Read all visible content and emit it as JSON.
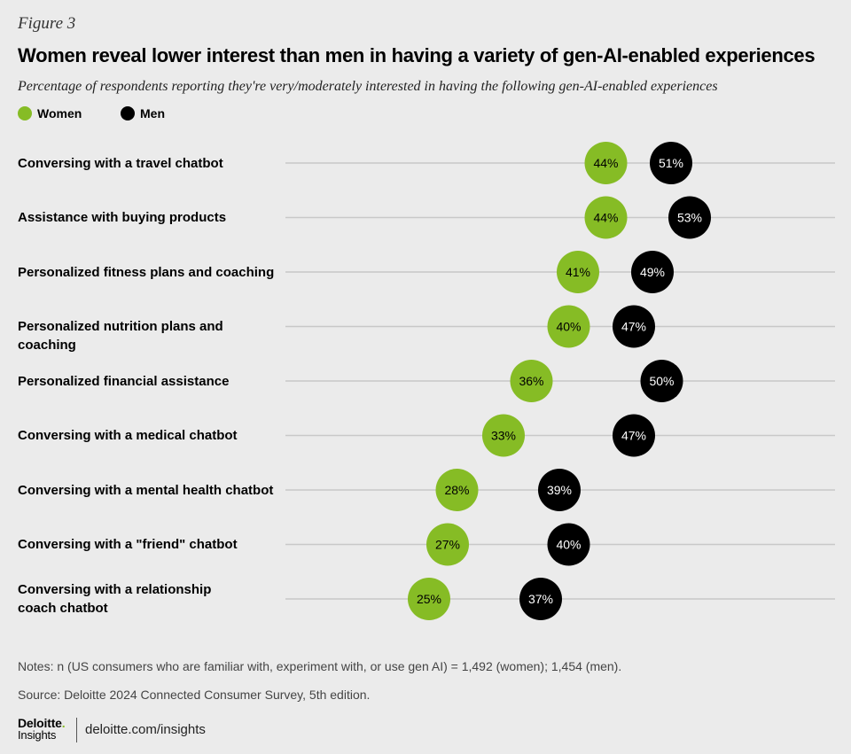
{
  "figure_label": "Figure 3",
  "title": "Women reveal lower interest than men in having a variety of gen-AI-enabled experiences",
  "subtitle": "Percentage of respondents reporting they're very/moderately interested in having the following gen-AI-enabled experiences",
  "legend": [
    {
      "label": "Women",
      "color": "#86bc25"
    },
    {
      "label": "Men",
      "color": "#000000"
    }
  ],
  "chart_data": {
    "type": "scatter",
    "subtype": "dot-plot",
    "title": "Women reveal lower interest than men in having a variety of gen-AI-enabled experiences",
    "subtitle": "Percentage of respondents reporting they're very/moderately interested in having the following gen-AI-enabled experiences",
    "categories": [
      "Conversing with a travel chatbot",
      "Assistance with buying products",
      "Personalized fitness plans and coaching",
      "Personalized nutrition plans and coaching",
      "Personalized financial assistance",
      "Conversing with a medical chatbot",
      "Conversing with a mental health chatbot",
      "Conversing with a \"friend\" chatbot",
      "Conversing with a relationship coach chatbot"
    ],
    "category_lines": [
      [
        "Conversing with a travel chatbot"
      ],
      [
        "Assistance with buying products"
      ],
      [
        "Personalized fitness plans and coaching"
      ],
      [
        "Personalized nutrition plans and coaching"
      ],
      [
        "Personalized financial assistance"
      ],
      [
        "Conversing with a medical chatbot"
      ],
      [
        "Conversing with a mental health chatbot"
      ],
      [
        "Conversing with a \"friend\" chatbot"
      ],
      [
        "Conversing with a relationship",
        "coach chatbot"
      ]
    ],
    "series": [
      {
        "name": "Women",
        "color": "#86bc25",
        "text_color": "#000000",
        "values": [
          44,
          44,
          41,
          40,
          36,
          33,
          28,
          27,
          25
        ]
      },
      {
        "name": "Men",
        "color": "#000000",
        "text_color": "#ffffff",
        "values": [
          51,
          53,
          49,
          47,
          50,
          47,
          39,
          40,
          37
        ]
      }
    ],
    "value_suffix": "%",
    "xlim": [
      0,
      60
    ],
    "xlabel": "",
    "ylabel": "",
    "grid": "horizontal row lines",
    "legend_position": "top-left"
  },
  "notes": "Notes: n (US consumers who are familiar with, experiment with, or use gen AI) =  1,492 (women); 1,454 (men).",
  "source": "Source: Deloitte 2024 Connected Consumer Survey, 5th edition.",
  "brand": {
    "name": "Deloitte",
    "name_dot": ".",
    "sub": "Insights",
    "url": "deloitte.com/insights",
    "accent": "#86bc25"
  }
}
